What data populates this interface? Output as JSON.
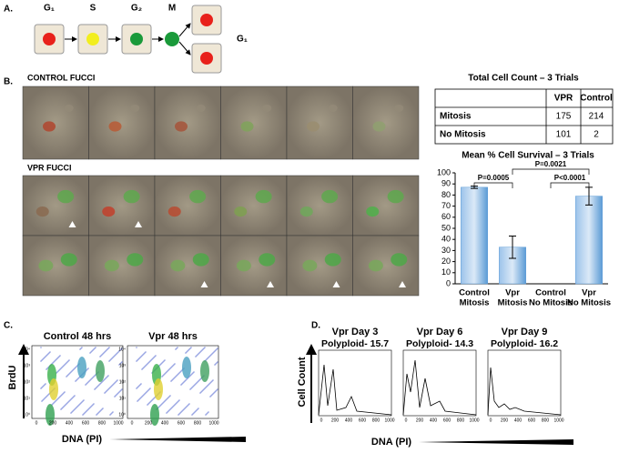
{
  "panel_a": {
    "label": "A.",
    "phases": [
      "G₁",
      "S",
      "G₂",
      "M",
      "G₁"
    ]
  },
  "panel_b": {
    "label": "B.",
    "control_title": "CONTROL FUCCI",
    "vpr_title": "VPR FUCCI"
  },
  "table": {
    "title": "Total Cell Count – 3 Trials",
    "header": [
      "VPR",
      "Control"
    ],
    "rows": [
      [
        "Mitosis",
        175,
        214
      ],
      [
        "No Mitosis",
        101,
        2
      ]
    ]
  },
  "chart_data": {
    "type": "bar",
    "title": "Mean % Cell Survival – 3 Trials",
    "categories": [
      [
        "Control",
        "Mitosis"
      ],
      [
        "Vpr",
        "Mitosis"
      ],
      [
        "Control",
        "No Mitosis"
      ],
      [
        "Vpr",
        "No Mitosis"
      ]
    ],
    "values": [
      87,
      33,
      0,
      79
    ],
    "errors": [
      1,
      10,
      0,
      8
    ],
    "color": "#5b9bd5",
    "ylim": [
      0,
      100
    ],
    "yticks": [
      0,
      10,
      20,
      30,
      40,
      50,
      60,
      70,
      80,
      90,
      100
    ],
    "annotations": [
      "P=0.0005",
      "P=0.0021",
      "P<0.0001"
    ]
  },
  "panel_c": {
    "label": "C.",
    "titles": [
      "Control 48 hrs",
      "Vpr 48 hrs"
    ],
    "y_label": "BrdU",
    "x_label": "DNA (PI)",
    "xtick_labels": [
      "0",
      "200",
      "400",
      "600",
      "800",
      "1000"
    ],
    "ytick_labels": [
      "10⁴",
      "10³",
      "10²",
      "10¹",
      "10⁰"
    ]
  },
  "panel_d": {
    "label": "D.",
    "y_label": "Cell Count",
    "x_label": "DNA (PI)",
    "titles": [
      "Vpr Day 3",
      "Vpr Day 6",
      "Vpr Day 9"
    ],
    "polyploid": [
      "Polyploid- 15.7",
      "Polyploid- 14.3",
      "Polyploid- 16.2"
    ],
    "xtick_labels": [
      "0",
      "200",
      "400",
      "600",
      "800",
      "1000"
    ]
  }
}
